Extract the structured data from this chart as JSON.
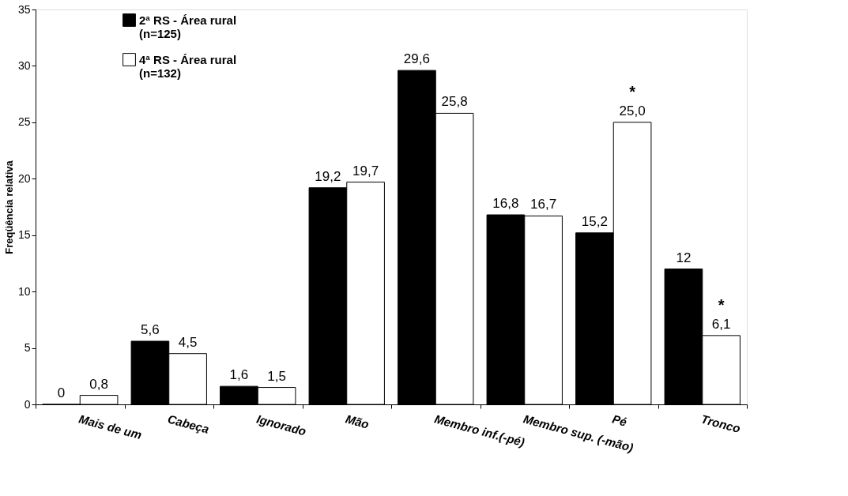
{
  "chart_data": {
    "type": "bar",
    "ylabel": "Freqüência relativa",
    "categories": [
      "Mais de um",
      "Cabeça",
      "Ignorado",
      "Mão",
      "Membro inf.(-pé)",
      "Membro sup.  (-mão)",
      "Pé",
      "Tronco"
    ],
    "series": [
      {
        "name": "2ª RS - Área rural\n(n=125)",
        "color": "#000000",
        "values": [
          0,
          5.6,
          1.6,
          19.2,
          29.6,
          16.8,
          15.2,
          12
        ],
        "value_labels": [
          "0",
          "5,6",
          "1,6",
          "19,2",
          "29,6",
          "16,8",
          "15,2",
          "12"
        ]
      },
      {
        "name": "4ª RS - Área rural\n(n=132)",
        "color": "#ffffff",
        "values": [
          0.8,
          4.5,
          1.5,
          19.7,
          25.8,
          16.7,
          25.0,
          6.1
        ],
        "value_labels": [
          "0,8",
          "4,5",
          "1,5",
          "19,7",
          "25,8",
          "16,7",
          "25,0",
          "6,1"
        ]
      }
    ],
    "annotations": [
      {
        "text": "*",
        "x": "Pé",
        "y": 25.0
      },
      {
        "text": "*",
        "x": "Tronco",
        "y": 6.1
      }
    ],
    "ylim": [
      0,
      35
    ],
    "yticks": [
      0,
      5,
      10,
      15,
      20,
      25,
      30,
      35
    ],
    "grid": false,
    "legend": "top left"
  }
}
